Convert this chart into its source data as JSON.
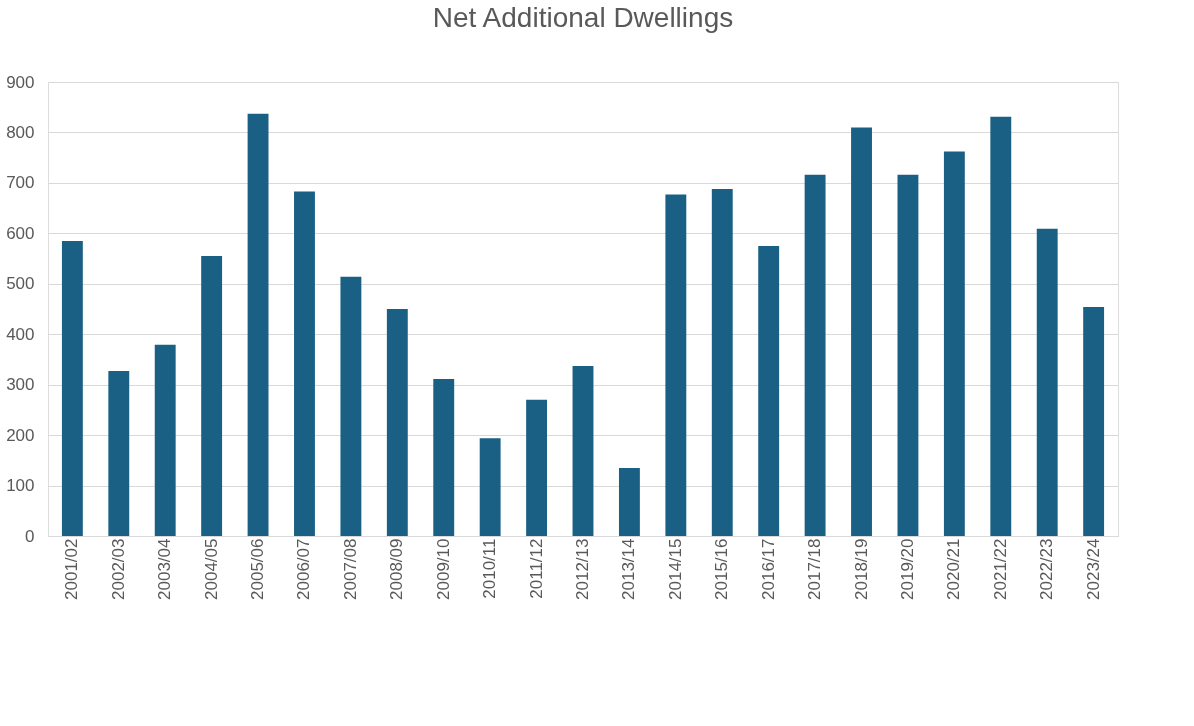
{
  "chart_data": {
    "type": "bar",
    "title": "Net Additional Dwellings",
    "categories": [
      "2001/02",
      "2002/03",
      "2003/04",
      "2004/05",
      "2005/06",
      "2006/07",
      "2007/08",
      "2008/09",
      "2009/10",
      "2010/11",
      "2011/12",
      "2012/13",
      "2013/14",
      "2014/15",
      "2015/16",
      "2016/17",
      "2017/18",
      "2018/19",
      "2019/20",
      "2020/21",
      "2021/22",
      "2022/23",
      "2023/24"
    ],
    "values": [
      585,
      327,
      379,
      555,
      837,
      683,
      514,
      450,
      311,
      194,
      270,
      337,
      135,
      677,
      688,
      575,
      716,
      810,
      716,
      762,
      831,
      609,
      454
    ],
    "color": "#1a6085",
    "ylim": [
      0,
      900
    ],
    "yticks": [
      0,
      100,
      200,
      300,
      400,
      500,
      600,
      700,
      800,
      900
    ],
    "grid": "y"
  }
}
